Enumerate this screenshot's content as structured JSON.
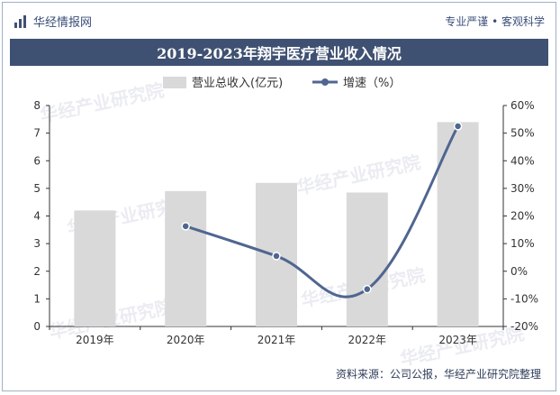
{
  "header": {
    "brand": "华经情报网",
    "slogan": "专业严谨 • 客观科学"
  },
  "watermark": "华经产业研究院",
  "source": "资料来源：公司公报，华经产业研究院整理",
  "colors": {
    "bar": "#d9d9d9",
    "line": "#4f6690",
    "banner": "#3f5172"
  },
  "chart_data": {
    "type": "bar",
    "title": "2019-2023年翔宇医疗营业收入情况",
    "categories": [
      "2019年",
      "2020年",
      "2021年",
      "2022年",
      "2023年"
    ],
    "series": [
      {
        "name": "营业总收入(亿元)",
        "type": "bar",
        "axis": "left",
        "values": [
          4.2,
          4.9,
          5.2,
          4.85,
          7.4
        ]
      },
      {
        "name": "增速（%）",
        "type": "line",
        "axis": "right",
        "values": [
          null,
          16.3,
          5.5,
          -6.5,
          52.5
        ]
      }
    ],
    "y_left": {
      "min": 0,
      "max": 8,
      "ticks": [
        "0",
        "1",
        "2",
        "3",
        "4",
        "5",
        "6",
        "7",
        "8"
      ]
    },
    "y_right": {
      "min": -20,
      "max": 60,
      "ticks": [
        "-20%",
        "-10%",
        "0%",
        "10%",
        "20%",
        "30%",
        "40%",
        "50%",
        "60%"
      ]
    },
    "legend_position": "top-center",
    "grid": false
  }
}
